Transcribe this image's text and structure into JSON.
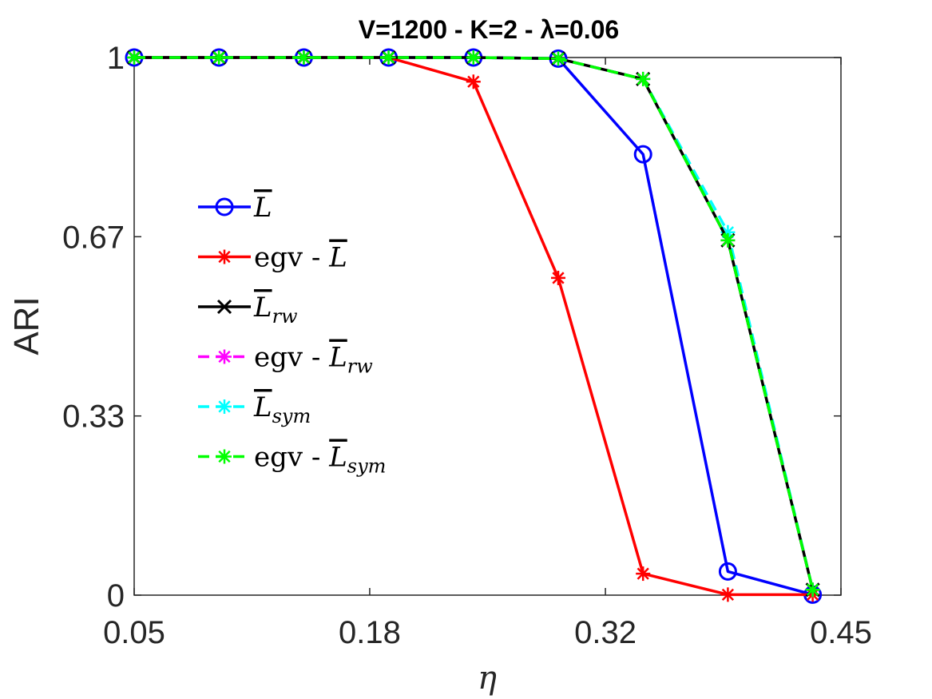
{
  "chart_data": {
    "type": "line",
    "title": "V=1200 - K=2 - λ=0.06",
    "xlabel": "η",
    "ylabel": "ARI",
    "xlim": [
      0.05,
      0.45
    ],
    "ylim": [
      0,
      1
    ],
    "xticks": [
      0.05,
      0.1833,
      0.3167,
      0.45
    ],
    "xtick_labels": [
      "0.05",
      "0.18",
      "0.32",
      "0.45"
    ],
    "yticks": [
      0,
      0.3333,
      0.6667,
      1
    ],
    "ytick_labels": [
      "0",
      "0.33",
      "0.67",
      "1"
    ],
    "x": [
      0.05,
      0.098,
      0.146,
      0.194,
      0.242,
      0.29,
      0.338,
      0.386,
      0.434
    ],
    "series": [
      {
        "name": "L̄",
        "color": "#0000ff",
        "marker": "circle",
        "dashed": false,
        "values": [
          1,
          1,
          1,
          1,
          1,
          0.998,
          0.82,
          0.044,
          0.001
        ]
      },
      {
        "name": "egv - L̄",
        "color": "#ff0000",
        "marker": "star",
        "dashed": false,
        "values": [
          1,
          1,
          1,
          1,
          0.955,
          0.59,
          0.04,
          0.001,
          0.001
        ]
      },
      {
        "name": "L̄rw",
        "color": "#000000",
        "marker": "x",
        "dashed": false,
        "values": [
          1,
          1,
          1,
          1,
          1,
          0.998,
          0.96,
          0.66,
          0.01
        ]
      },
      {
        "name": "egv - L̄rw",
        "color": "#ff00ff",
        "marker": "star",
        "dashed": true,
        "values": [
          1,
          1,
          1,
          1,
          1,
          0.998,
          0.96,
          0.66,
          0.01
        ]
      },
      {
        "name": "L̄sym",
        "color": "#00ffff",
        "marker": "star",
        "dashed": true,
        "values": [
          1,
          1,
          1,
          1,
          1,
          0.998,
          0.96,
          0.675,
          0.01
        ]
      },
      {
        "name": "egv - L̄sym",
        "color": "#00ff00",
        "marker": "star",
        "dashed": true,
        "values": [
          1,
          1,
          1,
          1,
          1,
          0.998,
          0.96,
          0.66,
          0.01
        ]
      }
    ],
    "legend": {
      "location": "center-left",
      "entries": [
        {
          "prefix": "",
          "base": "L",
          "sub": ""
        },
        {
          "prefix": "egv - ",
          "base": "L",
          "sub": ""
        },
        {
          "prefix": "",
          "base": "L",
          "sub": "rw"
        },
        {
          "prefix": "egv - ",
          "base": "L",
          "sub": "rw"
        },
        {
          "prefix": "",
          "base": "L",
          "sub": "sym"
        },
        {
          "prefix": "egv - ",
          "base": "L",
          "sub": "sym"
        }
      ]
    },
    "grid": false
  }
}
